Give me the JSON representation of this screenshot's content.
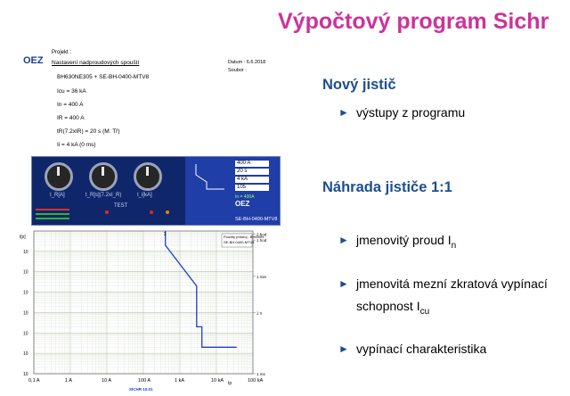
{
  "slide": {
    "title": "Výpočtový program Sichr"
  },
  "report": {
    "logo": "OEZ",
    "projekt_label": "Projekt :",
    "projekt_title": "Nastavení nadproudových spouští",
    "datum": "Datum : 6.6.2018",
    "soubor": "Soubor :",
    "params": [
      "BH630NE305 + SE-BH-0400-MTV8",
      "Icu = 36 kA",
      "In = 400 A",
      "IR = 400 A",
      "tR(7.2xIR) = 20 s (M: Tř)",
      "Ii = 4 kA (0 ms)"
    ]
  },
  "panel": {
    "values": [
      "400 A",
      "20 s",
      "4 kA",
      "105"
    ],
    "labels": [
      "I_R[A]",
      "t_R[s](7.2xI_R)",
      "I_i[kA]"
    ],
    "test_label": "TEST",
    "in_value": "In = 400A",
    "brand": "OEZ",
    "model": "SE-BH-0400-MTV8"
  },
  "chart_data": {
    "type": "line",
    "x_axis_scale": "log",
    "y_axis_scale": "log",
    "xlim": [
      0.1,
      100000
    ],
    "x_tick_labels": [
      "0,1 A",
      "1 A",
      "10 A",
      "100 A",
      "1 kA",
      "10 kA",
      "100 kA"
    ],
    "y_tick_labels": [
      "10",
      "10",
      "10",
      "10",
      "10",
      "10",
      "10"
    ],
    "y_unit_label": "t[s]",
    "right_tick_labels": [
      "2 hod",
      "1 hod",
      "1 min",
      "1 s",
      "1 ms"
    ],
    "legend": [
      "Použitý přístroj : BH630N",
      "SE-BH-0400-MTV8"
    ],
    "curve_label": "1",
    "footer": "SICHR 10.01",
    "x_unit_label": "Ip",
    "grid": true,
    "series": [
      {
        "x": [
          400,
          400,
          2880,
          2880,
          4000,
          4000,
          36000
        ],
        "y": [
          10000,
          2000,
          20,
          0.2,
          0.2,
          0.02,
          0.02
        ]
      }
    ],
    "line_color": "#1a3fd1"
  },
  "right": {
    "heading1": "Nový jistič",
    "bullet1": "výstupy z programu",
    "heading2": "Náhrada jističe 1:1",
    "bullets": [
      {
        "text": "jmenovitý proud I",
        "sub": "n"
      },
      {
        "text": "jmenovitá mezní zkratová vypínací schopnost I",
        "sub": "cu"
      },
      {
        "text": "vypínací charakteristika",
        "sub": ""
      }
    ]
  }
}
